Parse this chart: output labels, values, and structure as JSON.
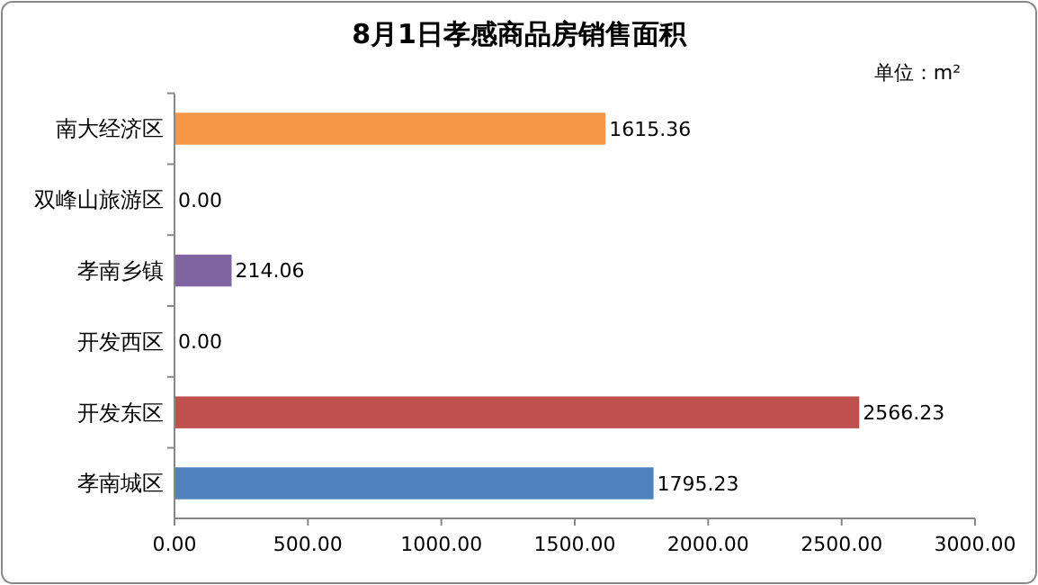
{
  "chart_data": {
    "type": "bar",
    "orientation": "horizontal",
    "title": "8月1日孝感商品房销售面积",
    "annotations": [
      "单位：m²"
    ],
    "categories": [
      "南大经济区",
      "双峰山旅游区",
      "孝南乡镇",
      "开发西区",
      "开发东区",
      "孝南城区"
    ],
    "values": [
      1615.36,
      0,
      214.06,
      0,
      2566.23,
      1795.23
    ],
    "colors": [
      "#f79646",
      "#4bacc6",
      "#8064a2",
      "#9bbb59",
      "#c0504d",
      "#4f81bd"
    ],
    "value_labels": [
      "1615.36",
      "0.00",
      "214.06",
      "0.00",
      "2566.23",
      "1795.23"
    ],
    "xlim": [
      0,
      3000
    ],
    "xticks": [
      {
        "value": 0,
        "label": "0.00"
      },
      {
        "value": 500,
        "label": "500.00"
      },
      {
        "value": 1000,
        "label": "1000.00"
      },
      {
        "value": 1500,
        "label": "1500.00"
      },
      {
        "value": 2000,
        "label": "2000.00"
      },
      {
        "value": 2500,
        "label": "2500.00"
      },
      {
        "value": 3000,
        "label": "3000.00"
      }
    ],
    "grid": false
  }
}
